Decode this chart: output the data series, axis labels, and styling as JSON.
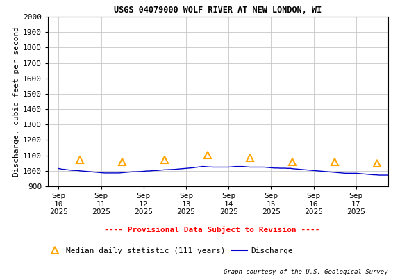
{
  "title": "USGS 04079000 WOLF RIVER AT NEW LONDON, WI",
  "ylabel": "Discharge, cubic feet per second",
  "courtesy": "Graph courtesy of the U.S. Geological Survey",
  "ylim": [
    900,
    2000
  ],
  "yticks": [
    900,
    1000,
    1100,
    1200,
    1300,
    1400,
    1500,
    1600,
    1700,
    1800,
    1900,
    2000
  ],
  "xtick_positions": [
    0,
    1,
    2,
    3,
    4,
    5,
    6,
    7
  ],
  "xtick_labels": [
    "Sep\n10\n2025",
    "Sep\n11\n2025",
    "Sep\n12\n2025",
    "Sep\n13\n2025",
    "Sep\n14\n2025",
    "Sep\n15\n2025",
    "Sep\n16\n2025",
    "Sep\n17\n2025"
  ],
  "discharge_x": [
    0.0,
    0.042,
    0.083,
    0.125,
    0.167,
    0.208,
    0.25,
    0.292,
    0.333,
    0.375,
    0.417,
    0.458,
    0.5,
    0.542,
    0.583,
    0.625,
    0.667,
    0.708,
    0.75,
    0.792,
    0.833,
    0.875,
    0.917,
    0.958,
    1.0,
    1.042,
    1.083,
    1.125,
    1.167,
    1.208,
    1.25,
    1.292,
    1.333,
    1.375,
    1.417,
    1.458,
    1.5,
    1.542,
    1.583,
    1.625,
    1.667,
    1.708,
    1.75,
    1.792,
    1.833,
    1.875,
    1.917,
    1.958,
    2.0,
    2.042,
    2.083,
    2.125,
    2.167,
    2.208,
    2.25,
    2.292,
    2.333,
    2.375,
    2.417,
    2.458,
    2.5,
    2.542,
    2.583,
    2.625,
    2.667,
    2.708,
    2.75,
    2.792,
    2.833,
    2.875,
    2.917,
    2.958,
    3.0,
    3.042,
    3.083,
    3.125,
    3.167,
    3.208,
    3.25,
    3.292,
    3.333,
    3.375,
    3.417,
    3.458,
    3.5,
    3.542,
    3.583,
    3.625,
    3.667,
    3.708,
    3.75,
    3.792,
    3.833,
    3.875,
    3.917,
    3.958,
    4.0,
    4.042,
    4.083,
    4.125,
    4.167,
    4.208,
    4.25,
    4.292,
    4.333,
    4.375,
    4.417,
    4.458,
    4.5,
    4.542,
    4.583,
    4.625,
    4.667,
    4.708,
    4.75,
    4.792,
    4.833,
    4.875,
    4.917,
    4.958,
    5.0,
    5.042,
    5.083,
    5.125,
    5.167,
    5.208,
    5.25,
    5.292,
    5.333,
    5.375,
    5.417,
    5.458,
    5.5,
    5.542,
    5.583,
    5.625,
    5.667,
    5.708,
    5.75,
    5.792,
    5.833,
    5.875,
    5.917,
    5.958,
    6.0,
    6.042,
    6.083,
    6.125,
    6.167,
    6.208,
    6.25,
    6.292,
    6.333,
    6.375,
    6.417,
    6.458,
    6.5,
    6.542,
    6.583,
    6.625,
    6.667,
    6.708,
    6.75,
    6.792,
    6.833,
    6.875,
    6.917,
    6.958,
    7.0,
    7.042,
    7.083,
    7.125,
    7.167,
    7.208,
    7.25,
    7.292,
    7.333,
    7.375,
    7.417,
    7.458,
    7.5,
    7.542,
    7.583,
    7.625,
    7.667,
    7.708,
    7.75,
    7.792,
    7.833,
    7.875,
    7.917,
    7.958
  ],
  "discharge_y": [
    1015,
    1013,
    1010,
    1010,
    1008,
    1007,
    1005,
    1004,
    1003,
    1003,
    1002,
    1002,
    1000,
    999,
    998,
    997,
    996,
    995,
    994,
    993,
    992,
    991,
    990,
    989,
    988,
    987,
    986,
    986,
    986,
    986,
    986,
    986,
    986,
    986,
    986,
    987,
    988,
    989,
    990,
    991,
    992,
    993,
    994,
    994,
    994,
    995,
    995,
    996,
    997,
    998,
    999,
    999,
    1000,
    1001,
    1002,
    1002,
    1003,
    1004,
    1005,
    1006,
    1007,
    1007,
    1008,
    1008,
    1009,
    1009,
    1010,
    1011,
    1012,
    1013,
    1014,
    1015,
    1016,
    1017,
    1018,
    1019,
    1020,
    1022,
    1023,
    1025,
    1026,
    1028,
    1028,
    1027,
    1026,
    1025,
    1025,
    1024,
    1024,
    1024,
    1024,
    1024,
    1024,
    1024,
    1024,
    1024,
    1024,
    1025,
    1026,
    1027,
    1028,
    1028,
    1028,
    1028,
    1028,
    1027,
    1026,
    1025,
    1024,
    1024,
    1024,
    1024,
    1024,
    1024,
    1024,
    1024,
    1024,
    1023,
    1022,
    1021,
    1020,
    1019,
    1018,
    1018,
    1018,
    1017,
    1017,
    1017,
    1017,
    1016,
    1016,
    1016,
    1014,
    1013,
    1012,
    1011,
    1010,
    1009,
    1008,
    1007,
    1006,
    1005,
    1004,
    1003,
    1002,
    1001,
    1000,
    999,
    998,
    997,
    996,
    995,
    994,
    993,
    992,
    991,
    990,
    989,
    988,
    987,
    986,
    985,
    984,
    984,
    984,
    984,
    984,
    984,
    984,
    983,
    982,
    981,
    980,
    979,
    978,
    977,
    976,
    975,
    974,
    974,
    973,
    972,
    972,
    972,
    972,
    972,
    972,
    972,
    972,
    972,
    972,
    972
  ],
  "median_x": [
    0.5,
    1.5,
    2.5,
    3.5,
    4.5,
    5.5,
    6.5,
    7.5
  ],
  "median_y": [
    1072,
    1058,
    1070,
    1102,
    1085,
    1060,
    1060,
    1050
  ],
  "discharge_color": "#0000cd",
  "median_color": "#ffa500",
  "provisional_color": "#ff0000",
  "bg_color": "#ffffff",
  "grid_color": "#c8c8c8",
  "title_fontsize": 8.5,
  "ylabel_fontsize": 8,
  "tick_fontsize": 8,
  "legend_fontsize": 8,
  "courtesy_fontsize": 6.5,
  "provisional_fontsize": 8,
  "legend_text_median": "Median daily statistic (111 years)",
  "legend_text_discharge": "Discharge",
  "provisional_text": "---- Provisional Data Subject to Revision ----",
  "font_family": "monospace",
  "xlim_left": -0.25,
  "xlim_right": 7.75
}
